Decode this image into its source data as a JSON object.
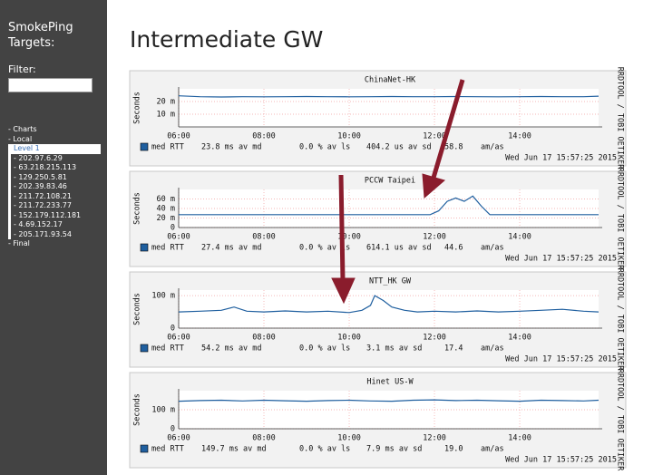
{
  "sidebar": {
    "title": "SmokePing Targets:",
    "filter_label": "Filter:",
    "menu": [
      "- Charts",
      "- Local"
    ],
    "selected": "Level 1",
    "targets": [
      "- 202.97.6.29",
      "- 63.218.215.113",
      "- 129.250.5.81",
      "- 202.39.83.46",
      "- 211.72.108.21",
      "- 211.72.233.77",
      "- 152.179.112.181",
      "- 4.69.152.17",
      "- 205.171.93.54"
    ],
    "after": [
      "- Final"
    ]
  },
  "main": {
    "title": "Intermediate GW"
  },
  "graphs": [
    {
      "type": "line",
      "title": "ChinaNet-HK",
      "y_label": "Seconds",
      "side_label": "RRDTOOL / TOBI OETIKER",
      "xlim": [
        6,
        15.85
      ],
      "xticks": [
        {
          "value": 6,
          "label": "06:00"
        },
        {
          "value": 8,
          "label": "08:00"
        },
        {
          "value": 10,
          "label": "10:00"
        },
        {
          "value": 12,
          "label": "12:00"
        },
        {
          "value": 14,
          "label": "14:00"
        }
      ],
      "ylim": [
        0,
        30
      ],
      "yticks": [
        {
          "value": 10,
          "label": "10 m"
        },
        {
          "value": 20,
          "label": "20 m"
        }
      ],
      "grid": true,
      "series": [
        {
          "name": "med RTT",
          "color": "#1f5f9f",
          "x": [
            6,
            6.5,
            7,
            7.5,
            8,
            8.5,
            9,
            9.5,
            10,
            10.5,
            11,
            11.5,
            12,
            12.5,
            13,
            13.5,
            14,
            14.5,
            15,
            15.5,
            15.85
          ],
          "values": [
            24.5,
            23.8,
            23.6,
            23.8,
            23.7,
            23.8,
            23.9,
            23.8,
            23.7,
            23.8,
            23.9,
            23.8,
            23.8,
            23.9,
            23.8,
            23.7,
            23.8,
            23.9,
            23.8,
            23.8,
            24.2
          ]
        }
      ],
      "legend": {
        "median": "23.8 ms av md",
        "loss": "0.0 % av ls",
        "sd": "404.2 us av sd",
        "ratio": "58.8",
        "ratio_unit": "am/as"
      },
      "date": "Wed Jun 17 15:57:25 2015"
    },
    {
      "type": "line",
      "title": "PCCW Taipei",
      "y_label": "Seconds",
      "side_label": "RRDTOOL / TOBI OETIKER",
      "xlim": [
        6,
        15.85
      ],
      "xticks": [
        {
          "value": 6,
          "label": "06:00"
        },
        {
          "value": 8,
          "label": "08:00"
        },
        {
          "value": 10,
          "label": "10:00"
        },
        {
          "value": 12,
          "label": "12:00"
        },
        {
          "value": 14,
          "label": "14:00"
        }
      ],
      "ylim": [
        0,
        80
      ],
      "yticks": [
        0,
        {
          "value": 20,
          "label": "20 m"
        },
        {
          "value": 40,
          "label": "40 m"
        },
        {
          "value": 60,
          "label": "60 m"
        }
      ],
      "grid": true,
      "series": [
        {
          "name": "med RTT",
          "color": "#1f5f9f",
          "x": [
            6,
            7,
            8,
            9,
            10,
            11,
            11.9,
            12.1,
            12.3,
            12.5,
            12.7,
            12.9,
            13.1,
            13.3,
            13.5,
            14,
            15,
            15.85
          ],
          "values": [
            27,
            27,
            27,
            27,
            27,
            27,
            27,
            35,
            55,
            62,
            55,
            66,
            45,
            27,
            27,
            27,
            27,
            27
          ]
        }
      ],
      "legend": {
        "median": "27.4 ms av md",
        "loss": "0.0 % av ls",
        "sd": "614.1 us av sd",
        "ratio": "44.6",
        "ratio_unit": "am/as"
      },
      "date": "Wed Jun 17 15:57:25 2015"
    },
    {
      "type": "line",
      "title": "NTT_HK GW",
      "y_label": "Seconds",
      "side_label": "RRDTOOL / TOBI OETIKER",
      "xlim": [
        6,
        15.85
      ],
      "xticks": [
        {
          "value": 6,
          "label": "06:00"
        },
        {
          "value": 8,
          "label": "08:00"
        },
        {
          "value": 10,
          "label": "10:00"
        },
        {
          "value": 12,
          "label": "12:00"
        },
        {
          "value": 14,
          "label": "14:00"
        }
      ],
      "ylim": [
        0,
        117
      ],
      "yticks": [
        0,
        {
          "value": 100,
          "label": "100 m"
        }
      ],
      "grid": true,
      "series": [
        {
          "name": "med RTT",
          "color": "#1f5f9f",
          "x": [
            6,
            6.5,
            7,
            7.3,
            7.6,
            8,
            8.5,
            9,
            9.5,
            10,
            10.3,
            10.5,
            10.6,
            10.8,
            11,
            11.3,
            11.6,
            12,
            12.5,
            13,
            13.5,
            14,
            14.5,
            15,
            15.5,
            15.85
          ],
          "values": [
            50,
            52,
            55,
            65,
            52,
            50,
            53,
            50,
            52,
            48,
            55,
            70,
            100,
            85,
            65,
            55,
            50,
            52,
            50,
            53,
            50,
            52,
            55,
            58,
            52,
            50
          ]
        }
      ],
      "legend": {
        "median": "54.2 ms av md",
        "loss": "0.0 % av ls",
        "sd": "3.1 ms av sd",
        "ratio": "17.4",
        "ratio_unit": "am/as"
      },
      "date": "Wed Jun 17 15:57:25 2015"
    },
    {
      "type": "line",
      "title": "Hinet US-W",
      "y_label": "Seconds",
      "side_label": "RRDTOOL / TOBI OETIKER",
      "xlim": [
        6,
        15.85
      ],
      "xticks": [
        {
          "value": 6,
          "label": "06:00"
        },
        {
          "value": 8,
          "label": "08:00"
        },
        {
          "value": 10,
          "label": "10:00"
        },
        {
          "value": 12,
          "label": "12:00"
        },
        {
          "value": 14,
          "label": "14:00"
        }
      ],
      "ylim": [
        0,
        200
      ],
      "yticks": [
        0,
        {
          "value": 100,
          "label": "100 m"
        }
      ],
      "grid": true,
      "series": [
        {
          "name": "med RTT",
          "color": "#1f5f9f",
          "x": [
            6,
            6.5,
            7,
            7.5,
            8,
            8.5,
            9,
            9.5,
            10,
            10.5,
            11,
            11.5,
            12,
            12.5,
            13,
            13.5,
            14,
            14.5,
            15,
            15.5,
            15.85
          ],
          "values": [
            145,
            148,
            150,
            146,
            150,
            147,
            145,
            148,
            150,
            146,
            145,
            150,
            152,
            148,
            150,
            147,
            145,
            150,
            148,
            146,
            150
          ]
        }
      ],
      "legend": {
        "median": "149.7 ms av md",
        "loss": "0.0 % av ls",
        "sd": "7.9 ms av sd",
        "ratio": "19.0",
        "ratio_unit": "am/as"
      },
      "date": "Wed Jun 17 15:57:25 2015"
    }
  ]
}
